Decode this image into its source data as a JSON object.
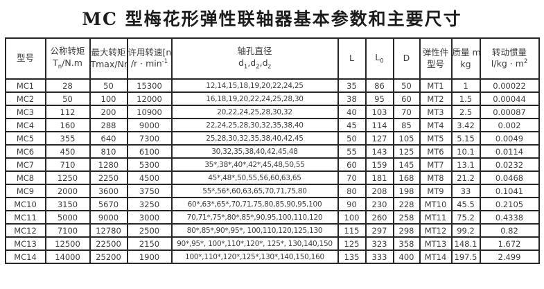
{
  "title": "MC 型梅花形弹性联轴器基本参数和主要尺寸",
  "table": {
    "headers": [
      {
        "name": "model",
        "lines": [
          [
            {
              "t": "text",
              "v": "型号"
            }
          ]
        ]
      },
      {
        "name": "nominal-torque",
        "lines": [
          [
            {
              "t": "text",
              "v": "公称转矩"
            }
          ],
          [
            {
              "t": "text",
              "v": "T"
            },
            {
              "t": "sub",
              "v": "n"
            },
            {
              "t": "text",
              "v": "/N.m"
            }
          ]
        ]
      },
      {
        "name": "max-torque",
        "lines": [
          [
            {
              "t": "text",
              "v": "最大转矩"
            }
          ],
          [
            {
              "t": "text",
              "v": "Tmax/Nm"
            }
          ]
        ]
      },
      {
        "name": "allowable-speed",
        "lines": [
          [
            {
              "t": "text",
              "v": "许用转速[n]"
            }
          ],
          [
            {
              "t": "text",
              "v": "/r · min"
            },
            {
              "t": "sup",
              "v": "-1"
            }
          ]
        ]
      },
      {
        "name": "bore-diameter",
        "lines": [
          [
            {
              "t": "text",
              "v": "轴孔直径"
            }
          ],
          [
            {
              "t": "text",
              "v": "d"
            },
            {
              "t": "sub",
              "v": "1"
            },
            {
              "t": "text",
              "v": ",d"
            },
            {
              "t": "sub",
              "v": "2"
            },
            {
              "t": "text",
              "v": ",d"
            },
            {
              "t": "sub",
              "v": "z"
            }
          ]
        ]
      },
      {
        "name": "length-L",
        "lines": [
          [
            {
              "t": "text",
              "v": "L"
            }
          ]
        ]
      },
      {
        "name": "length-L0",
        "lines": [
          [
            {
              "t": "text",
              "v": "L"
            },
            {
              "t": "sub",
              "v": "0"
            }
          ]
        ]
      },
      {
        "name": "diameter-D",
        "lines": [
          [
            {
              "t": "text",
              "v": "D"
            }
          ]
        ]
      },
      {
        "name": "elastic-part-model",
        "lines": [
          [
            {
              "t": "text",
              "v": "弹性件"
            }
          ],
          [
            {
              "t": "text",
              "v": "型号"
            }
          ]
        ]
      },
      {
        "name": "mass",
        "lines": [
          [
            {
              "t": "text",
              "v": "质量 m/"
            }
          ],
          [
            {
              "t": "text",
              "v": "kg"
            }
          ]
        ]
      },
      {
        "name": "rotational-inertia",
        "lines": [
          [
            {
              "t": "text",
              "v": "转动惯量"
            }
          ],
          [
            {
              "t": "text",
              "v": "I/kg · m"
            },
            {
              "t": "sup",
              "v": "2"
            }
          ]
        ]
      }
    ],
    "rows": [
      [
        "MC1",
        "28",
        "50",
        "15300",
        "12,14,15,18,19,20,22,24,25",
        "35",
        "86",
        "50",
        "MT1",
        "1",
        "0.00022"
      ],
      [
        "MC2",
        "50",
        "100",
        "12000",
        "16,18,19,20,22,24,25,28,30",
        "38",
        "95",
        "60",
        "MT2",
        "1.5",
        "0.00044"
      ],
      [
        "MC3",
        "112",
        "200",
        "10900",
        "20,22,24,25,28,30,32",
        "40",
        "103",
        "70",
        "MT3",
        "2.5",
        "0.00087"
      ],
      [
        "MC4",
        "160",
        "288",
        "9000",
        "22,24,25,28,30,32,35,38,40",
        "45",
        "114",
        "85",
        "MT4",
        "3.42",
        "0.002"
      ],
      [
        "MC5",
        "355",
        "640",
        "7300",
        "25,28,30,32,35,38,40,42,45",
        "50",
        "127",
        "105",
        "MT5",
        "5.15",
        "0.0049"
      ],
      [
        "MC6",
        "450",
        "810",
        "6100",
        "30,32,35,38,40,42,45,48",
        "55",
        "143",
        "125",
        "MT6",
        "10.1",
        "0.0114"
      ],
      [
        "MC7",
        "710",
        "1280",
        "5300",
        "35*,38*,40*,42*,45,48,50,55",
        "60",
        "159",
        "145",
        "MT7",
        "13.1",
        "0.0232"
      ],
      [
        "MC8",
        "1250",
        "2250",
        "4500",
        "45*,48*,50,55,56,60,63,65",
        "70",
        "181",
        "168",
        "MT8",
        "21.2",
        "0.0468"
      ],
      [
        "MC9",
        "2000",
        "3600",
        "3750",
        "55*,56*,60,63,65,70,71,75,80",
        "80",
        "208",
        "198",
        "MT9",
        "33",
        "0.1041"
      ],
      [
        "MC10",
        "3150",
        "5670",
        "3250",
        "60*,63*,65*,70,71,75,80,85,90,95,100",
        "90",
        "230",
        "228",
        "MT10",
        "45.5",
        "0.2105"
      ],
      [
        "MC11",
        "5000",
        "9000",
        "3000",
        "70,71*,75*,80*,85*,90,95,100,110,120",
        "100",
        "260",
        "258",
        "MT11",
        "75.2",
        "0.4338"
      ],
      [
        "MC12",
        "7100",
        "12780",
        "2500",
        "80*,85*,90*,95*, 100,110,120,125,130",
        "115",
        "297",
        "298",
        "MT12",
        "99.2",
        "0.82"
      ],
      [
        "MC13",
        "12500",
        "22500",
        "2150",
        "90*,95*, 100*,110*,120*, 125*, 130,140,150",
        "125",
        "323",
        "358",
        "MT13",
        "148.1",
        "1.672"
      ],
      [
        "MC14",
        "14000",
        "25200",
        "1900",
        "100*,110*,120*,125*,130*,140,150,160",
        "135",
        "333",
        "400",
        "MT14",
        "197.5",
        "2.499"
      ]
    ]
  }
}
